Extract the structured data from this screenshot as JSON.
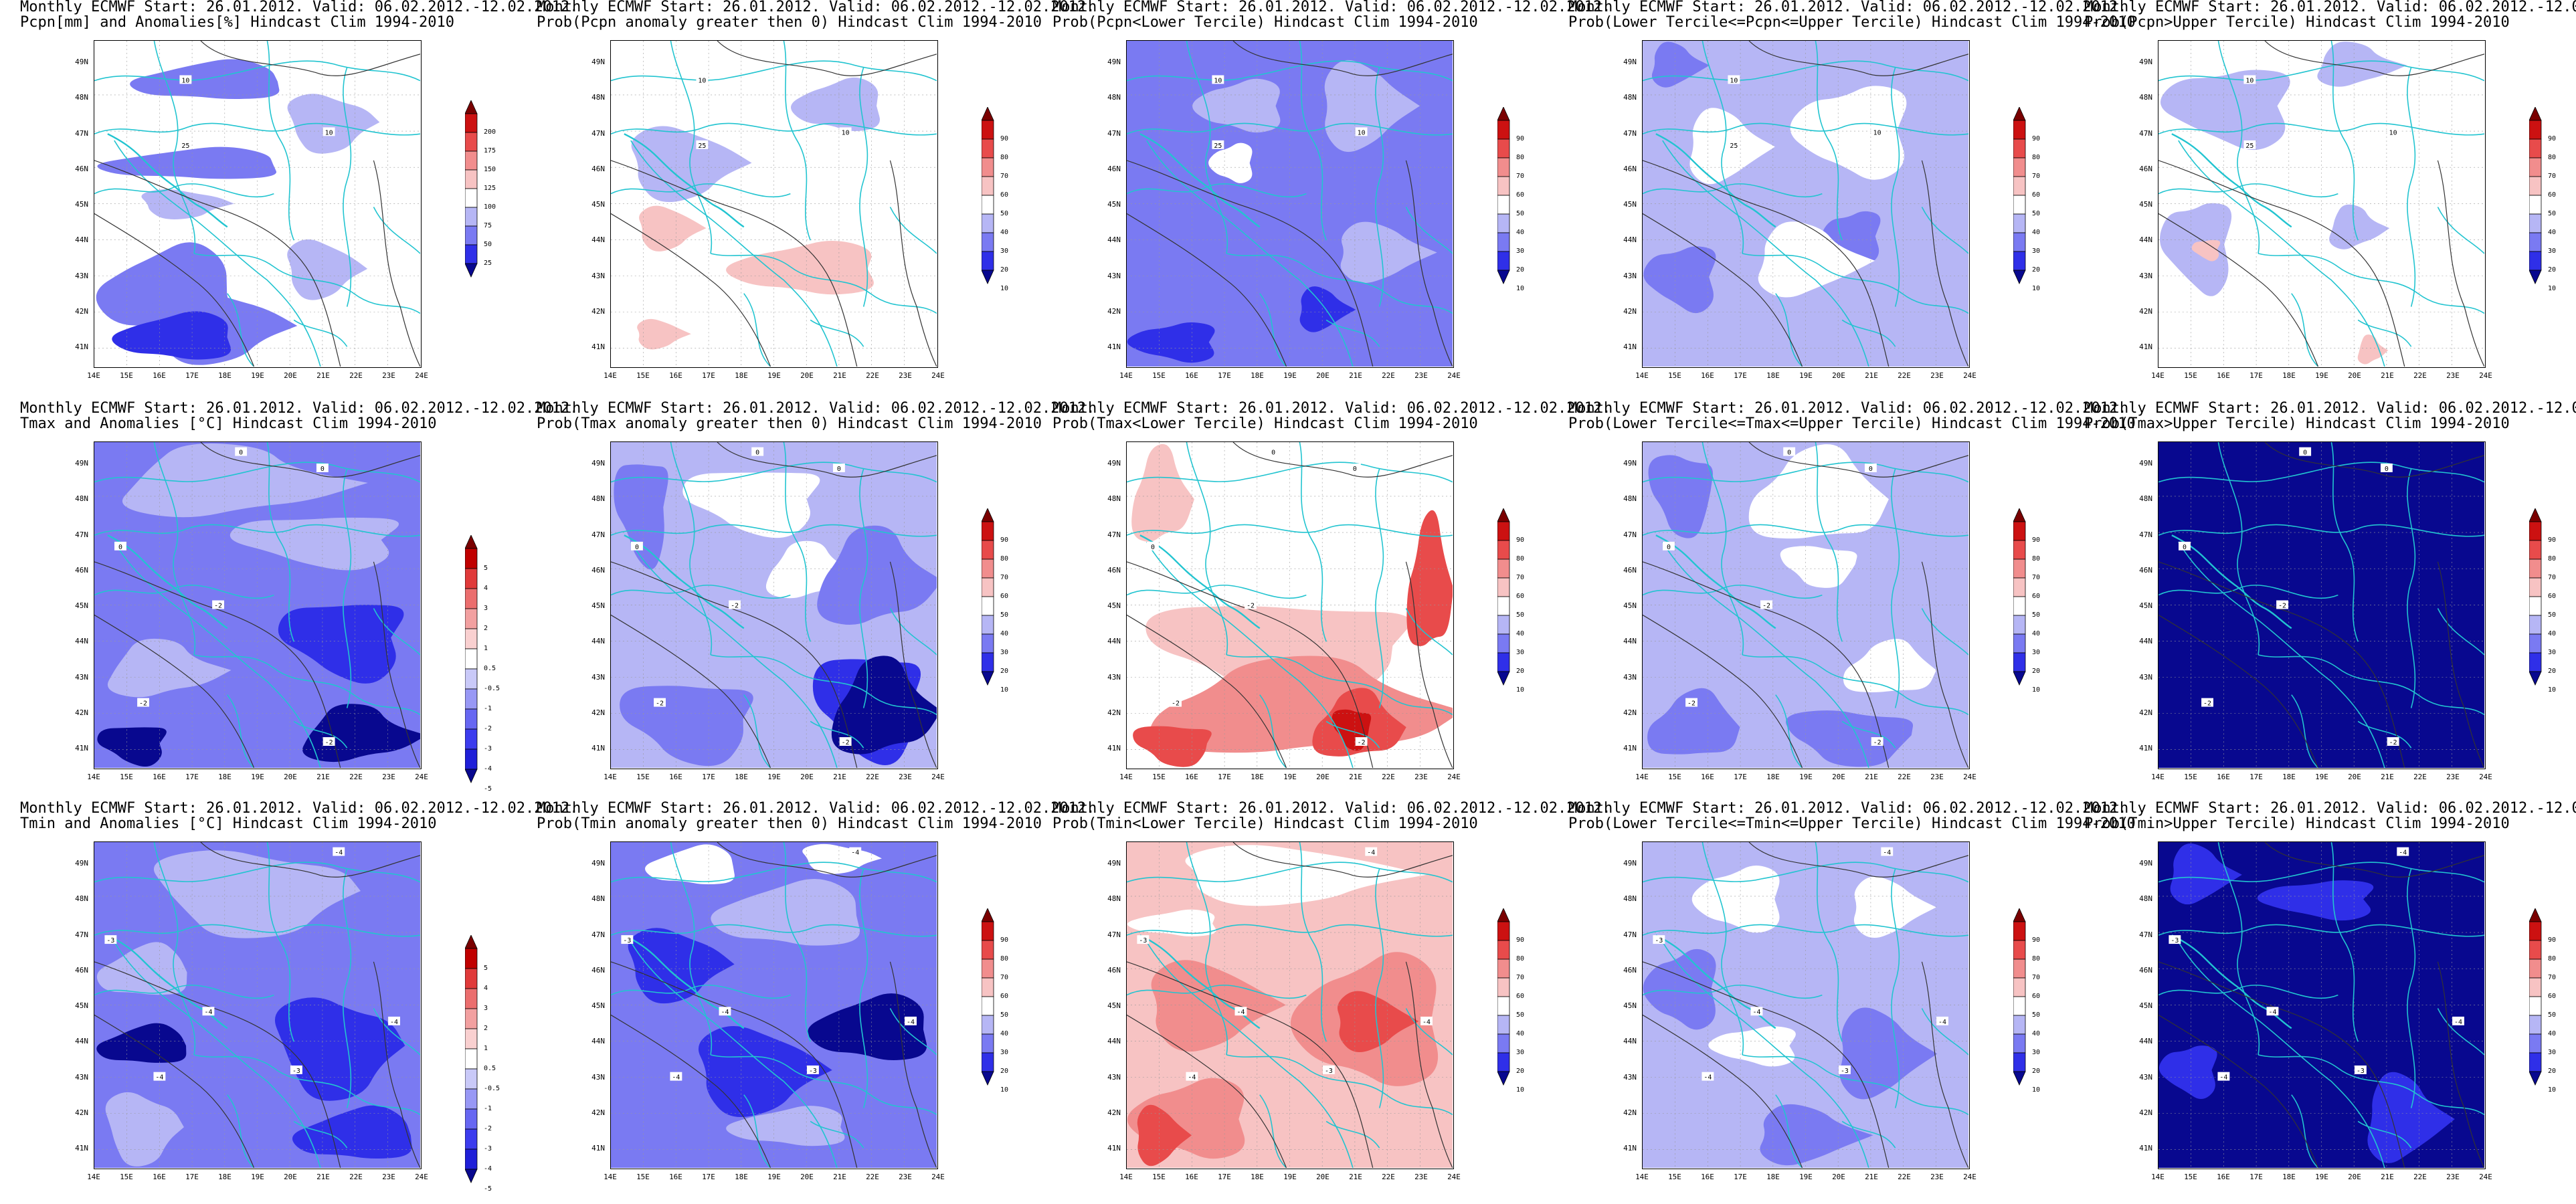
{
  "header_line": "Monthly ECMWF Start: 26.01.2012. Valid: 06.02.2012.-12.02.2012.",
  "x_ticks": [
    "14E",
    "15E",
    "16E",
    "17E",
    "18E",
    "19E",
    "20E",
    "21E",
    "22E",
    "23E",
    "24E"
  ],
  "y_ticks": [
    "49N",
    "48N",
    "47N",
    "46N",
    "45N",
    "44N",
    "43N",
    "42N",
    "41N"
  ],
  "colors": {
    "precip_scale": [
      "#08088f",
      "#2f2fe8",
      "#7a7af2",
      "#b6b6f5",
      "#ffffff",
      "#f7c3c3",
      "#f18d8d",
      "#e84b4b",
      "#cc1111",
      "#7a0000"
    ],
    "prob_scale": [
      "#08088f",
      "#2f2fe8",
      "#7a7af2",
      "#b6b6f5",
      "#ffffff",
      "#f7c3c3",
      "#f18d8d",
      "#e84b4b",
      "#cc1111",
      "#7a0000"
    ],
    "temp_scale": [
      "#08088f",
      "#1f1fd8",
      "#3c3cee",
      "#6767f2",
      "#9898f5",
      "#c9c9f8",
      "#ffffff",
      "#f9d0d0",
      "#f2a0a0",
      "#eb6e6e",
      "#e03a3a",
      "#c00000",
      "#7a0000"
    ],
    "borders": "#22c4d0",
    "contours": "#333333"
  },
  "colorbars": {
    "precip": [
      "200",
      "175",
      "150",
      "125",
      "100",
      "75",
      "50",
      "25"
    ],
    "prob": [
      "90",
      "80",
      "70",
      "60",
      "50",
      "40",
      "30",
      "20",
      "10"
    ],
    "temp": [
      "5",
      "4",
      "3",
      "2",
      "1",
      "0.5",
      "-0.5",
      "-1",
      "-2",
      "-3",
      "-4",
      "-5"
    ]
  },
  "panels": [
    {
      "id": "p1",
      "subtitle": "Pcpn[mm] and Anomalies[%] Hindcast Clim 1994-2010",
      "scale": "precip",
      "base": "white",
      "blobs": [
        [
          "mid",
          0.1,
          0.05,
          0.5,
          0.15
        ],
        [
          "light",
          0.55,
          0.15,
          0.35,
          0.2
        ],
        [
          "mid",
          0.0,
          0.32,
          0.6,
          0.12
        ],
        [
          "light",
          0.1,
          0.45,
          0.35,
          0.1
        ],
        [
          "mid",
          0.0,
          0.6,
          0.45,
          0.35
        ],
        [
          "mid",
          0.1,
          0.75,
          0.55,
          0.25
        ],
        [
          "dark",
          0.05,
          0.82,
          0.4,
          0.18
        ],
        [
          "light",
          0.55,
          0.6,
          0.3,
          0.2
        ]
      ],
      "contour_labels": [
        [
          "10",
          0.28,
          0.12
        ],
        [
          "10",
          0.72,
          0.28
        ],
        [
          "25",
          0.28,
          0.32
        ]
      ]
    },
    {
      "id": "p2",
      "subtitle": "Prob(Pcpn anomaly greater then 0) Hindcast Clim 1994-2010",
      "scale": "prob",
      "base": "white",
      "blobs": [
        [
          "light",
          0.0,
          0.25,
          0.45,
          0.25
        ],
        [
          "light",
          0.55,
          0.1,
          0.3,
          0.2
        ],
        [
          "pink",
          0.05,
          0.5,
          0.25,
          0.15
        ],
        [
          "pink",
          0.35,
          0.6,
          0.5,
          0.2
        ],
        [
          "pink",
          0.05,
          0.85,
          0.2,
          0.1
        ]
      ],
      "contour_labels": [
        [
          "10",
          0.28,
          0.12
        ],
        [
          "10",
          0.72,
          0.28
        ],
        [
          "25",
          0.28,
          0.32
        ]
      ]
    },
    {
      "id": "p3",
      "subtitle": "Prob(Pcpn<Lower Tercile) Hindcast Clim 1994-2010",
      "scale": "prob",
      "base": "mid",
      "blobs": [
        [
          "light",
          0.2,
          0.1,
          0.3,
          0.2
        ],
        [
          "light",
          0.55,
          0.05,
          0.35,
          0.3
        ],
        [
          "white",
          0.25,
          0.3,
          0.15,
          0.15
        ],
        [
          "light",
          0.6,
          0.55,
          0.35,
          0.2
        ],
        [
          "dark",
          0.0,
          0.85,
          0.3,
          0.15
        ],
        [
          "dark",
          0.5,
          0.75,
          0.2,
          0.15
        ]
      ],
      "contour_labels": [
        [
          "10",
          0.28,
          0.12
        ],
        [
          "10",
          0.72,
          0.28
        ],
        [
          "25",
          0.28,
          0.32
        ]
      ]
    },
    {
      "id": "p4",
      "subtitle": "Prob(Lower Tercile<=Pcpn<=Upper Tercile) Hindcast Clim 1994-2010",
      "scale": "prob",
      "base": "light",
      "blobs": [
        [
          "white",
          0.1,
          0.2,
          0.3,
          0.25
        ],
        [
          "white",
          0.45,
          0.1,
          0.4,
          0.35
        ],
        [
          "mid",
          0.0,
          0.0,
          0.2,
          0.15
        ],
        [
          "mid",
          0.55,
          0.5,
          0.2,
          0.2
        ],
        [
          "white",
          0.3,
          0.55,
          0.4,
          0.25
        ],
        [
          "mid",
          0.0,
          0.6,
          0.25,
          0.25
        ]
      ],
      "contour_labels": [
        [
          "10",
          0.28,
          0.12
        ],
        [
          "10",
          0.72,
          0.28
        ],
        [
          "25",
          0.28,
          0.32
        ]
      ]
    },
    {
      "id": "p5",
      "subtitle": "Prob(Pcpn>Upper Tercile) Hindcast Clim 1994-2010",
      "scale": "prob",
      "base": "white",
      "blobs": [
        [
          "light",
          0.0,
          0.05,
          0.45,
          0.3
        ],
        [
          "light",
          0.45,
          0.0,
          0.3,
          0.15
        ],
        [
          "light",
          0.0,
          0.45,
          0.25,
          0.35
        ],
        [
          "light",
          0.5,
          0.5,
          0.2,
          0.15
        ],
        [
          "pink",
          0.1,
          0.6,
          0.1,
          0.08
        ],
        [
          "pink",
          0.6,
          0.9,
          0.1,
          0.1
        ]
      ],
      "contour_labels": [
        [
          "10",
          0.28,
          0.12
        ],
        [
          "10",
          0.72,
          0.28
        ],
        [
          "25",
          0.28,
          0.32
        ]
      ]
    },
    {
      "id": "p6",
      "subtitle": "Tmax and Anomalies [°C] Hindcast Clim 1994-2010",
      "scale": "temp",
      "base": "mid",
      "blobs": [
        [
          "light",
          0.0,
          0.0,
          0.8,
          0.25
        ],
        [
          "light",
          0.4,
          0.2,
          0.6,
          0.2
        ],
        [
          "light",
          0.0,
          0.6,
          0.4,
          0.2
        ],
        [
          "dark",
          0.55,
          0.45,
          0.45,
          0.3
        ],
        [
          "deep",
          0.6,
          0.8,
          0.4,
          0.2
        ],
        [
          "deep",
          0.0,
          0.85,
          0.25,
          0.15
        ]
      ],
      "contour_labels": [
        [
          "0",
          0.45,
          0.03
        ],
        [
          "0",
          0.7,
          0.08
        ],
        [
          "0",
          0.08,
          0.32
        ],
        [
          "-2",
          0.38,
          0.5
        ],
        [
          "-2",
          0.72,
          0.92
        ],
        [
          "-2",
          0.15,
          0.8
        ]
      ]
    },
    {
      "id": "p7",
      "subtitle": "Prob(Tmax anomaly greater then 0) Hindcast Clim 1994-2010",
      "scale": "prob",
      "base": "light",
      "blobs": [
        [
          "white",
          0.2,
          0.05,
          0.5,
          0.25
        ],
        [
          "white",
          0.45,
          0.3,
          0.3,
          0.2
        ],
        [
          "mid",
          0.0,
          0.0,
          0.2,
          0.4
        ],
        [
          "mid",
          0.6,
          0.25,
          0.4,
          0.35
        ],
        [
          "dark",
          0.6,
          0.6,
          0.4,
          0.4
        ],
        [
          "deep",
          0.65,
          0.65,
          0.35,
          0.35
        ],
        [
          "mid",
          0.0,
          0.7,
          0.5,
          0.3
        ]
      ],
      "contour_labels": [
        [
          "0",
          0.45,
          0.03
        ],
        [
          "0",
          0.7,
          0.08
        ],
        [
          "0",
          0.08,
          0.32
        ],
        [
          "-2",
          0.38,
          0.5
        ],
        [
          "-2",
          0.72,
          0.92
        ],
        [
          "-2",
          0.15,
          0.8
        ]
      ]
    },
    {
      "id": "p8",
      "subtitle": "Prob(Tmax<Lower Tercile) Hindcast Clim 1994-2010",
      "scale": "prob",
      "base": "white",
      "blobs": [
        [
          "pink",
          0.0,
          0.0,
          0.2,
          0.35
        ],
        [
          "pink",
          0.0,
          0.45,
          1.0,
          0.35
        ],
        [
          "pink2",
          0.0,
          0.65,
          1.0,
          0.35
        ],
        [
          "red",
          0.0,
          0.85,
          0.3,
          0.15
        ],
        [
          "red",
          0.55,
          0.75,
          0.3,
          0.25
        ],
        [
          "dred",
          0.62,
          0.8,
          0.15,
          0.15
        ],
        [
          "red",
          0.85,
          0.2,
          0.15,
          0.5
        ]
      ],
      "contour_labels": [
        [
          "0",
          0.45,
          0.03
        ],
        [
          "0",
          0.7,
          0.08
        ],
        [
          "0",
          0.08,
          0.32
        ],
        [
          "-2",
          0.38,
          0.5
        ],
        [
          "-2",
          0.72,
          0.92
        ],
        [
          "-2",
          0.15,
          0.8
        ]
      ]
    },
    {
      "id": "p9",
      "subtitle": "Prob(Lower Tercile<=Tmax<=Upper Tercile) Hindcast Clim 1994-2010",
      "scale": "prob",
      "base": "light",
      "blobs": [
        [
          "mid",
          0.0,
          0.0,
          0.25,
          0.3
        ],
        [
          "white",
          0.3,
          0.0,
          0.45,
          0.35
        ],
        [
          "white",
          0.4,
          0.3,
          0.3,
          0.15
        ],
        [
          "white",
          0.6,
          0.6,
          0.3,
          0.2
        ],
        [
          "mid",
          0.4,
          0.8,
          0.5,
          0.2
        ],
        [
          "mid",
          0.0,
          0.75,
          0.3,
          0.25
        ]
      ],
      "contour_labels": [
        [
          "0",
          0.45,
          0.03
        ],
        [
          "0",
          0.7,
          0.08
        ],
        [
          "0",
          0.08,
          0.32
        ],
        [
          "-2",
          0.38,
          0.5
        ],
        [
          "-2",
          0.72,
          0.92
        ],
        [
          "-2",
          0.15,
          0.8
        ]
      ]
    },
    {
      "id": "p10",
      "subtitle": "Prob(Tmax>Upper Tercile) Hindcast Clim 1994-2010",
      "scale": "prob",
      "base": "deep",
      "blobs": [],
      "contour_labels": [
        [
          "0",
          0.45,
          0.03
        ],
        [
          "0",
          0.7,
          0.08
        ],
        [
          "0",
          0.08,
          0.32
        ],
        [
          "-2",
          0.38,
          0.5
        ],
        [
          "-2",
          0.72,
          0.92
        ],
        [
          "-2",
          0.15,
          0.8
        ]
      ]
    },
    {
      "id": "p11",
      "subtitle": "Tmin and Anomalies [°C] Hindcast Clim 1994-2010",
      "scale": "temp",
      "base": "mid",
      "blobs": [
        [
          "light",
          0.1,
          0.0,
          0.8,
          0.3
        ],
        [
          "light",
          0.0,
          0.3,
          0.3,
          0.2
        ],
        [
          "dark",
          0.5,
          0.45,
          0.5,
          0.35
        ],
        [
          "deep",
          0.0,
          0.55,
          0.3,
          0.15
        ],
        [
          "light",
          0.0,
          0.75,
          0.3,
          0.25
        ],
        [
          "dark",
          0.6,
          0.8,
          0.4,
          0.2
        ]
      ],
      "contour_labels": [
        [
          "-4",
          0.75,
          0.03
        ],
        [
          "-3",
          0.05,
          0.3
        ],
        [
          "-4",
          0.35,
          0.52
        ],
        [
          "-4",
          0.92,
          0.55
        ],
        [
          "-3",
          0.62,
          0.7
        ],
        [
          "-4",
          0.2,
          0.72
        ]
      ]
    },
    {
      "id": "p12",
      "subtitle": "Prob(Tmin anomaly greater then 0) Hindcast Clim 1994-2010",
      "scale": "prob",
      "base": "mid",
      "blobs": [
        [
          "white",
          0.1,
          0.0,
          0.3,
          0.15
        ],
        [
          "white",
          0.55,
          0.0,
          0.3,
          0.1
        ],
        [
          "light",
          0.3,
          0.1,
          0.5,
          0.25
        ],
        [
          "dark",
          0.0,
          0.25,
          0.4,
          0.25
        ],
        [
          "deep",
          0.6,
          0.45,
          0.4,
          0.25
        ],
        [
          "dark",
          0.2,
          0.55,
          0.5,
          0.3
        ],
        [
          "light",
          0.35,
          0.8,
          0.4,
          0.15
        ]
      ],
      "contour_labels": [
        [
          "-4",
          0.75,
          0.03
        ],
        [
          "-3",
          0.05,
          0.3
        ],
        [
          "-4",
          0.35,
          0.52
        ],
        [
          "-4",
          0.92,
          0.55
        ],
        [
          "-3",
          0.62,
          0.7
        ],
        [
          "-4",
          0.2,
          0.72
        ]
      ]
    },
    {
      "id": "p13",
      "subtitle": "Prob(Tmin<Lower Tercile) Hindcast Clim 1994-2010",
      "scale": "prob",
      "base": "pink",
      "blobs": [
        [
          "white",
          0.05,
          0.0,
          0.9,
          0.2
        ],
        [
          "white",
          0.0,
          0.2,
          0.3,
          0.1
        ],
        [
          "pink2",
          0.0,
          0.35,
          0.5,
          0.3
        ],
        [
          "pink2",
          0.5,
          0.3,
          0.5,
          0.5
        ],
        [
          "red",
          0.6,
          0.45,
          0.3,
          0.2
        ],
        [
          "pink2",
          0.0,
          0.7,
          0.4,
          0.3
        ],
        [
          "red",
          0.0,
          0.8,
          0.2,
          0.2
        ]
      ],
      "contour_labels": [
        [
          "-4",
          0.75,
          0.03
        ],
        [
          "-3",
          0.05,
          0.3
        ],
        [
          "-4",
          0.35,
          0.52
        ],
        [
          "-4",
          0.92,
          0.55
        ],
        [
          "-3",
          0.62,
          0.7
        ],
        [
          "-4",
          0.2,
          0.72
        ]
      ]
    },
    {
      "id": "p14",
      "subtitle": "Prob(Lower Tercile<=Tmin<=Upper Tercile) Hindcast Clim 1994-2010",
      "scale": "prob",
      "base": "light",
      "blobs": [
        [
          "white",
          0.15,
          0.05,
          0.3,
          0.25
        ],
        [
          "white",
          0.6,
          0.1,
          0.3,
          0.2
        ],
        [
          "mid",
          0.0,
          0.3,
          0.25,
          0.3
        ],
        [
          "mid",
          0.55,
          0.5,
          0.35,
          0.3
        ],
        [
          "white",
          0.2,
          0.55,
          0.3,
          0.15
        ],
        [
          "mid",
          0.3,
          0.8,
          0.4,
          0.2
        ]
      ],
      "contour_labels": [
        [
          "-4",
          0.75,
          0.03
        ],
        [
          "-3",
          0.05,
          0.3
        ],
        [
          "-4",
          0.35,
          0.52
        ],
        [
          "-4",
          0.92,
          0.55
        ],
        [
          "-3",
          0.62,
          0.7
        ],
        [
          "-4",
          0.2,
          0.72
        ]
      ]
    },
    {
      "id": "p15",
      "subtitle": "Prob(Tmin>Upper Tercile) Hindcast Clim 1994-2010",
      "scale": "prob",
      "base": "deep",
      "blobs": [
        [
          "dark",
          0.0,
          0.0,
          0.25,
          0.2
        ],
        [
          "dark",
          0.3,
          0.1,
          0.4,
          0.15
        ],
        [
          "dark",
          0.6,
          0.7,
          0.3,
          0.3
        ],
        [
          "dark",
          0.0,
          0.6,
          0.2,
          0.2
        ]
      ],
      "contour_labels": [
        [
          "-4",
          0.75,
          0.03
        ],
        [
          "-3",
          0.05,
          0.3
        ],
        [
          "-4",
          0.35,
          0.52
        ],
        [
          "-4",
          0.92,
          0.55
        ],
        [
          "-3",
          0.62,
          0.7
        ],
        [
          "-4",
          0.2,
          0.72
        ]
      ]
    }
  ]
}
